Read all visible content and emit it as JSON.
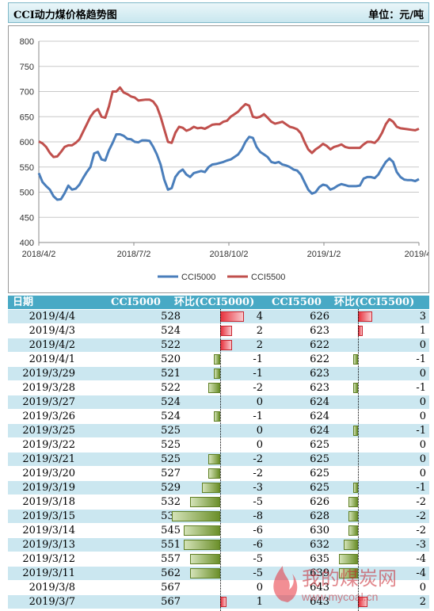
{
  "header": {
    "title": "CCI动力煤价格趋势图",
    "unit": "单位：元/吨"
  },
  "chart_data": {
    "type": "line",
    "ylim": [
      400,
      800
    ],
    "yticks": [
      400,
      450,
      500,
      550,
      600,
      650,
      700,
      750,
      800
    ],
    "xticks": [
      "2018/4/2",
      "2018/7/2",
      "2018/10/2",
      "2019/1/2",
      "2019/4/"
    ],
    "legend_position": "bottom",
    "series": [
      {
        "name": "CCI5000",
        "color": "#4a7ebb",
        "values": [
          538,
          520,
          512,
          505,
          492,
          485,
          486,
          498,
          513,
          505,
          507,
          515,
          528,
          540,
          550,
          577,
          580,
          565,
          563,
          583,
          598,
          615,
          615,
          612,
          606,
          605,
          600,
          599,
          603,
          603,
          602,
          590,
          575,
          555,
          525,
          505,
          508,
          530,
          540,
          545,
          535,
          530,
          538,
          540,
          542,
          540,
          550,
          555,
          556,
          558,
          560,
          563,
          565,
          570,
          575,
          585,
          600,
          610,
          608,
          590,
          580,
          575,
          570,
          560,
          558,
          560,
          555,
          553,
          550,
          545,
          543,
          535,
          520,
          505,
          497,
          500,
          510,
          515,
          513,
          505,
          508,
          513,
          516,
          514,
          512,
          512,
          512,
          513,
          527,
          530,
          530,
          528,
          535,
          548,
          560,
          567,
          560,
          540,
          530,
          525,
          524,
          524,
          522,
          526
        ]
      },
      {
        "name": "CCI5500",
        "color": "#c0504d",
        "values": [
          601,
          597,
          590,
          578,
          570,
          571,
          580,
          590,
          593,
          593,
          598,
          605,
          620,
          635,
          650,
          660,
          665,
          650,
          648,
          670,
          700,
          700,
          708,
          698,
          695,
          690,
          688,
          682,
          683,
          684,
          684,
          680,
          670,
          650,
          625,
          600,
          598,
          618,
          630,
          628,
          622,
          625,
          630,
          627,
          628,
          626,
          630,
          634,
          635,
          635,
          640,
          642,
          650,
          655,
          660,
          668,
          675,
          672,
          650,
          648,
          650,
          655,
          648,
          640,
          636,
          638,
          640,
          635,
          630,
          628,
          625,
          617,
          600,
          585,
          578,
          585,
          590,
          596,
          592,
          585,
          590,
          592,
          595,
          590,
          588,
          588,
          588,
          588,
          595,
          600,
          600,
          598,
          605,
          618,
          635,
          645,
          640,
          630,
          627,
          626,
          625,
          624,
          623,
          626
        ]
      }
    ]
  },
  "table": {
    "headers": [
      "日期",
      "CCI5000",
      "环比(CCI5000)",
      "CCI5500",
      "环比(CCI5500)"
    ],
    "rows": [
      {
        "date": "2019/4/4",
        "v1": "528",
        "d1": "4",
        "v2": "626",
        "d2": "3"
      },
      {
        "date": "2019/4/3",
        "v1": "524",
        "d1": "2",
        "v2": "623",
        "d2": "1"
      },
      {
        "date": "2019/4/2",
        "v1": "522",
        "d1": "2",
        "v2": "622",
        "d2": "0"
      },
      {
        "date": "2019/4/1",
        "v1": "520",
        "d1": "-1",
        "v2": "622",
        "d2": "-1"
      },
      {
        "date": "2019/3/29",
        "v1": "521",
        "d1": "-1",
        "v2": "623",
        "d2": "0"
      },
      {
        "date": "2019/3/28",
        "v1": "522",
        "d1": "-2",
        "v2": "623",
        "d2": "-1"
      },
      {
        "date": "2019/3/27",
        "v1": "524",
        "d1": "0",
        "v2": "624",
        "d2": "0"
      },
      {
        "date": "2019/3/26",
        "v1": "524",
        "d1": "-1",
        "v2": "624",
        "d2": "0"
      },
      {
        "date": "2019/3/25",
        "v1": "525",
        "d1": "0",
        "v2": "624",
        "d2": "-1"
      },
      {
        "date": "2019/3/22",
        "v1": "525",
        "d1": "0",
        "v2": "625",
        "d2": "0"
      },
      {
        "date": "2019/3/21",
        "v1": "525",
        "d1": "-2",
        "v2": "625",
        "d2": "0"
      },
      {
        "date": "2019/3/20",
        "v1": "527",
        "d1": "-2",
        "v2": "625",
        "d2": "0"
      },
      {
        "date": "2019/3/19",
        "v1": "529",
        "d1": "-3",
        "v2": "625",
        "d2": "-1"
      },
      {
        "date": "2019/3/18",
        "v1": "532",
        "d1": "-5",
        "v2": "626",
        "d2": "-2"
      },
      {
        "date": "2019/3/15",
        "v1": "537",
        "d1": "-8",
        "v2": "628",
        "d2": "-2"
      },
      {
        "date": "2019/3/14",
        "v1": "545",
        "d1": "-6",
        "v2": "630",
        "d2": "-2"
      },
      {
        "date": "2019/3/13",
        "v1": "551",
        "d1": "-6",
        "v2": "632",
        "d2": "-3"
      },
      {
        "date": "2019/3/12",
        "v1": "557",
        "d1": "-5",
        "v2": "635",
        "d2": "-4"
      },
      {
        "date": "2019/3/11",
        "v1": "562",
        "d1": "-5",
        "v2": "639",
        "d2": "-4"
      },
      {
        "date": "2019/3/8",
        "v1": "567",
        "d1": "0",
        "v2": "643",
        "d2": "0"
      },
      {
        "date": "2019/3/7",
        "v1": "567",
        "d1": "1",
        "v2": "643",
        "d2": "2"
      }
    ]
  },
  "watermark": {
    "name": "我的煤炭网",
    "url": "www.mycoal.cn"
  }
}
